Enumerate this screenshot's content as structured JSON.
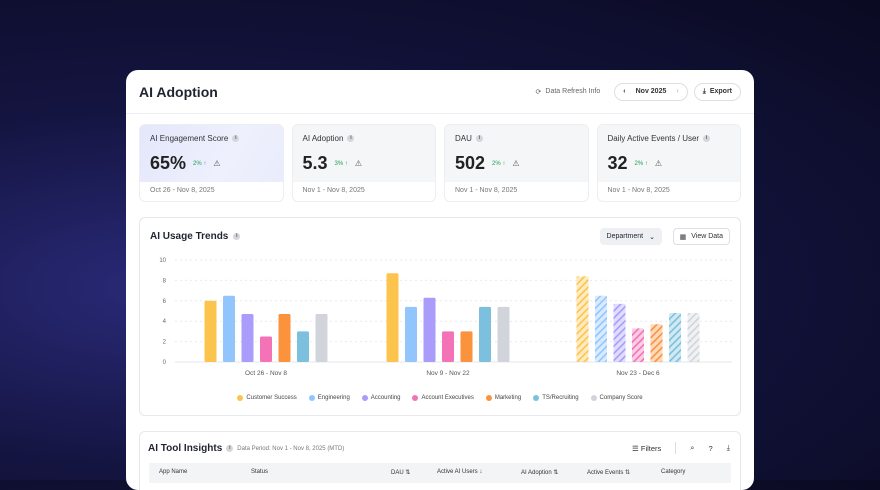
{
  "header": {
    "title": "AI Adoption",
    "refresh": "Data Refresh Info",
    "month": "Nov 2025",
    "export": "Export"
  },
  "kpis": [
    {
      "label": "AI Engagement Score",
      "value": "65%",
      "delta": "2%",
      "date": "Oct 26 - Nov 8, 2025"
    },
    {
      "label": "AI Adoption",
      "value": "5.3",
      "delta": "3%",
      "date": "Nov 1 - Nov 8, 2025"
    },
    {
      "label": "DAU",
      "value": "502",
      "delta": "2%",
      "date": "Nov 1 - Nov 8, 2025"
    },
    {
      "label": "Daily Active Events / User",
      "value": "32",
      "delta": "2%",
      "date": "Nov 1 - Nov 8, 2025"
    }
  ],
  "trends": {
    "title": "AI Usage Trends",
    "dropdown": "Department",
    "view_data": "View Data"
  },
  "chart_data": {
    "type": "bar",
    "categories": [
      "Oct 26 - Nov 8",
      "Nov 9 - Nov 22",
      "Nov 23 - Dec 6"
    ],
    "ylim": [
      0,
      10
    ],
    "yticks": [
      0,
      2,
      4,
      6,
      8,
      10
    ],
    "grid": true,
    "legend": "bottom",
    "projected_category": "Nov 23 - Dec 6",
    "series": [
      {
        "name": "Customer Success",
        "color": "#fcc44c",
        "values": [
          6,
          8.7,
          8.4
        ]
      },
      {
        "name": "Engineering",
        "color": "#93c5fd",
        "values": [
          6.5,
          5.4,
          6.5
        ]
      },
      {
        "name": "Accounting",
        "color": "#a99cfb",
        "values": [
          4.7,
          6.3,
          5.7
        ]
      },
      {
        "name": "Account Executives",
        "color": "#f472b6",
        "values": [
          2.5,
          3,
          3.3
        ]
      },
      {
        "name": "Marketing",
        "color": "#fb923c",
        "values": [
          4.7,
          3,
          3.7
        ]
      },
      {
        "name": "TS/Recruiting",
        "color": "#7cc0dd",
        "values": [
          3,
          5.4,
          4.8
        ]
      },
      {
        "name": "Company Score",
        "color": "#d1d5db",
        "values": [
          4.7,
          5.4,
          4.8
        ]
      }
    ]
  },
  "tools": {
    "title": "AI Tool Insights",
    "period": "Data Period: Nov 1 - Nov 8, 2025 (MTD)",
    "filters": "Filters",
    "columns": [
      "App Name",
      "Status",
      "DAU ⇅",
      "Active AI Users ↓",
      "AI Adoption ⇅",
      "Active Events ⇅",
      "Category"
    ]
  }
}
